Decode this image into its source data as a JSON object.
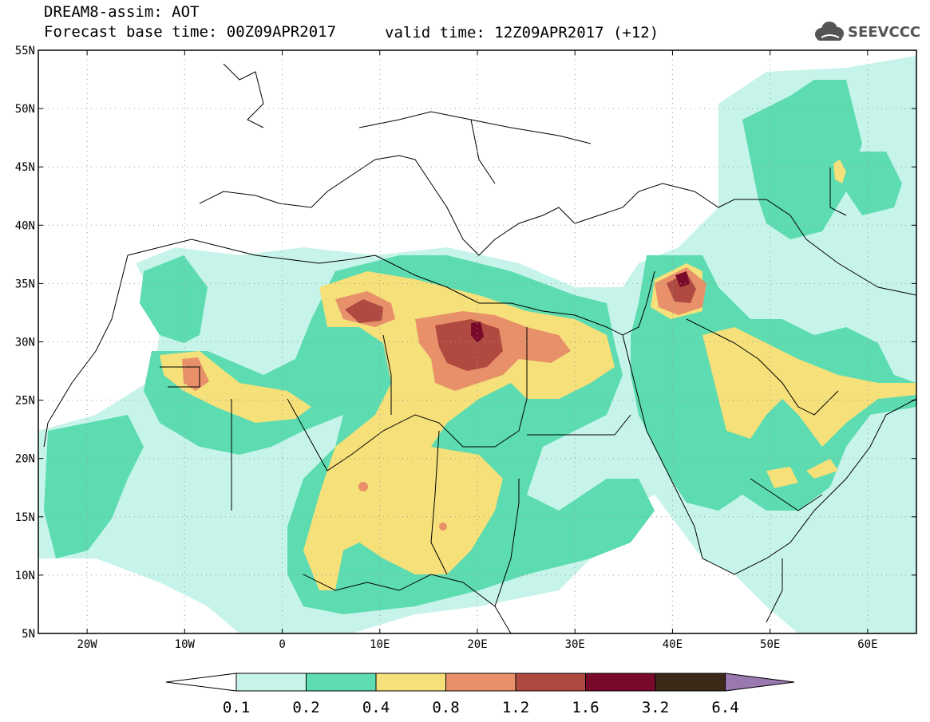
{
  "header": {
    "line1": "DREAM8-assim: AOT",
    "base": "Forecast base time: 00Z09APR2017",
    "valid": "valid time: 12Z09APR2017 (+12)"
  },
  "logo": {
    "name": "seevccc-logo",
    "text": "SEEVCCC"
  },
  "map": {
    "lon_range": [
      -25,
      65
    ],
    "lat_range": [
      5,
      55
    ],
    "lat_labels": [
      "55N",
      "50N",
      "45N",
      "40N",
      "35N",
      "30N",
      "25N",
      "20N",
      "15N",
      "10N",
      "5N"
    ],
    "lon_labels": [
      "20W",
      "10W",
      "0",
      "10E",
      "20E",
      "30E",
      "40E",
      "50E",
      "60E"
    ]
  },
  "legend": {
    "thresholds": [
      "0.1",
      "0.2",
      "0.4",
      "0.8",
      "1.2",
      "1.6",
      "3.2",
      "6.4"
    ],
    "colors": [
      "#ffffff",
      "#c6f4ea",
      "#5cdcb0",
      "#f5e07a",
      "#e8906a",
      "#b04a40",
      "#7a0a2a",
      "#3c2a18",
      "#9a78b0"
    ]
  }
}
